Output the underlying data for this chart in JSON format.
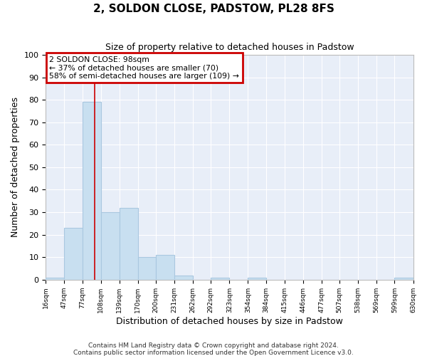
{
  "title": "2, SOLDON CLOSE, PADSTOW, PL28 8FS",
  "subtitle": "Size of property relative to detached houses in Padstow",
  "xlabel": "Distribution of detached houses by size in Padstow",
  "ylabel": "Number of detached properties",
  "bin_edges": [
    16,
    47,
    77,
    108,
    139,
    170,
    200,
    231,
    262,
    292,
    323,
    354,
    384,
    415,
    446,
    477,
    507,
    538,
    569,
    599,
    630
  ],
  "bin_counts": [
    1,
    23,
    79,
    30,
    32,
    10,
    11,
    2,
    0,
    1,
    0,
    1,
    0,
    0,
    0,
    0,
    0,
    0,
    0,
    1
  ],
  "bar_color": "#c8dff0",
  "bar_edge_color": "#aac8e0",
  "property_line_x": 98,
  "property_line_color": "#cc0000",
  "ylim": [
    0,
    100
  ],
  "annotation_line1": "2 SOLDON CLOSE: 98sqm",
  "annotation_line2": "← 37% of detached houses are smaller (70)",
  "annotation_line3": "58% of semi-detached houses are larger (109) →",
  "annotation_box_color": "#cc0000",
  "footnote1": "Contains HM Land Registry data © Crown copyright and database right 2024.",
  "footnote2": "Contains public sector information licensed under the Open Government Licence v3.0.",
  "tick_labels": [
    "16sqm",
    "47sqm",
    "77sqm",
    "108sqm",
    "139sqm",
    "170sqm",
    "200sqm",
    "231sqm",
    "262sqm",
    "292sqm",
    "323sqm",
    "354sqm",
    "384sqm",
    "415sqm",
    "446sqm",
    "477sqm",
    "507sqm",
    "538sqm",
    "569sqm",
    "599sqm",
    "630sqm"
  ],
  "background_color": "#ffffff",
  "plot_background_color": "#e8eef8",
  "grid_color": "#ffffff"
}
